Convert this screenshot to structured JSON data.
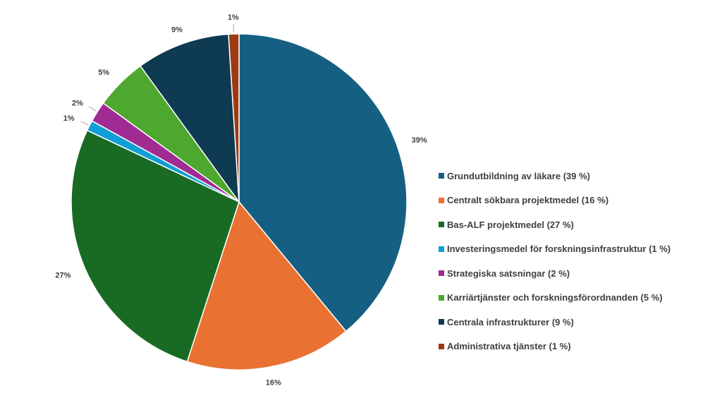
{
  "chart_data": {
    "type": "pie",
    "categories": [
      "Grundutbildning av läkare",
      "Centralt sökbara projektmedel",
      "Bas-ALF projektmedel",
      "Investeringsmedel för forskningsinfrastruktur",
      "Strategiska satsningar",
      "Karriärtjänster och forskningsförordnanden",
      "Centrala infrastrukturer",
      "Administrativa tjänster"
    ],
    "values": [
      39,
      16,
      27,
      1,
      2,
      5,
      9,
      1
    ],
    "data_labels": [
      "39%",
      "16%",
      "27%",
      "1%",
      "2%",
      "5%",
      "9%",
      "1%"
    ],
    "legend_labels": [
      "Grundutbildning av läkare (39 %)",
      "Centralt sökbara projektmedel (16 %)",
      "Bas-ALF projektmedel (27 %)",
      "Investeringsmedel för forskningsinfrastruktur (1 %)",
      "Strategiska satsningar (2 %)",
      "Karriärtjänster och forskningsförordnanden (5 %)",
      "Centrala infrastrukturer (9 %)",
      "Administrativa tjänster (1 %)"
    ],
    "colors": [
      "#156082",
      "#E97132",
      "#196B24",
      "#0F9ED5",
      "#A02B93",
      "#4EA72E",
      "#0E3A52",
      "#9C3A12"
    ],
    "legend_position": "right",
    "title": ""
  }
}
